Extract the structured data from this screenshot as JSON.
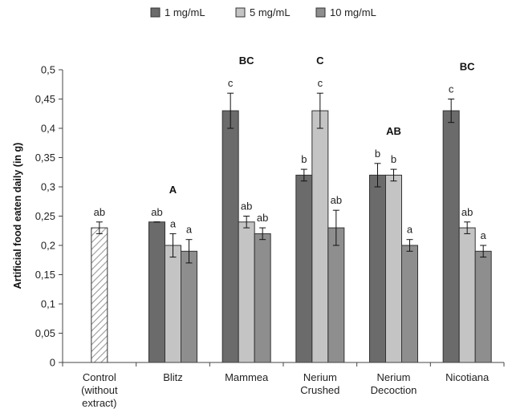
{
  "chart_data": {
    "type": "bar",
    "ylabel": "Artificial food eaten daily (in g)",
    "xlabel": "",
    "ylim": [
      0,
      0.5
    ],
    "yticks": [
      "0",
      "0,05",
      "0,1",
      "0,15",
      "0,2",
      "0,25",
      "0,3",
      "0,35",
      "0,4",
      "0,45",
      "0,5"
    ],
    "grid": false,
    "legend": "top",
    "colors": {
      "1 mg/mL": "#6b6b6b",
      "5 mg/mL": "#c4c4c4",
      "10 mg/mL": "#8e8e8e",
      "control_hatch": "#9a9a9a"
    },
    "series": [
      {
        "name": "1 mg/mL",
        "color": "#6b6b6b"
      },
      {
        "name": "5 mg/mL",
        "color": "#c4c4c4"
      },
      {
        "name": "10 mg/mL",
        "color": "#8e8e8e"
      }
    ],
    "groups": [
      {
        "category": [
          "Control",
          "(without",
          "extract)"
        ],
        "group_label": "",
        "bars": [
          {
            "series": "control",
            "value": 0.23,
            "error": 0.01,
            "letter": "ab",
            "hatched": true
          }
        ]
      },
      {
        "category": [
          "Blitz"
        ],
        "group_label": "A",
        "bars": [
          {
            "series": "1 mg/mL",
            "value": 0.24,
            "error": 0.0,
            "letter": "ab"
          },
          {
            "series": "5 mg/mL",
            "value": 0.2,
            "error": 0.02,
            "letter": "a"
          },
          {
            "series": "10 mg/mL",
            "value": 0.19,
            "error": 0.02,
            "letter": "a"
          }
        ]
      },
      {
        "category": [
          "Mammea"
        ],
        "group_label": "BC",
        "bars": [
          {
            "series": "1 mg/mL",
            "value": 0.43,
            "error": 0.03,
            "letter": "c"
          },
          {
            "series": "5 mg/mL",
            "value": 0.24,
            "error": 0.01,
            "letter": "ab"
          },
          {
            "series": "10 mg/mL",
            "value": 0.22,
            "error": 0.01,
            "letter": "ab"
          }
        ]
      },
      {
        "category": [
          "Nerium",
          "Crushed"
        ],
        "group_label": "C",
        "bars": [
          {
            "series": "1 mg/mL",
            "value": 0.32,
            "error": 0.01,
            "letter": "b"
          },
          {
            "series": "5 mg/mL",
            "value": 0.43,
            "error": 0.03,
            "letter": "c"
          },
          {
            "series": "10 mg/mL",
            "value": 0.23,
            "error": 0.03,
            "letter": "ab"
          }
        ]
      },
      {
        "category": [
          "Nerium",
          "Decoction"
        ],
        "group_label": "AB",
        "bars": [
          {
            "series": "1 mg/mL",
            "value": 0.32,
            "error": 0.02,
            "letter": "b"
          },
          {
            "series": "5 mg/mL",
            "value": 0.32,
            "error": 0.01,
            "letter": "b"
          },
          {
            "series": "10 mg/mL",
            "value": 0.2,
            "error": 0.01,
            "letter": "a"
          }
        ]
      },
      {
        "category": [
          "Nicotiana"
        ],
        "group_label": "BC",
        "bars": [
          {
            "series": "1 mg/mL",
            "value": 0.43,
            "error": 0.02,
            "letter": "c"
          },
          {
            "series": "5 mg/mL",
            "value": 0.23,
            "error": 0.01,
            "letter": "ab"
          },
          {
            "series": "10 mg/mL",
            "value": 0.19,
            "error": 0.01,
            "letter": "a"
          }
        ]
      }
    ]
  }
}
